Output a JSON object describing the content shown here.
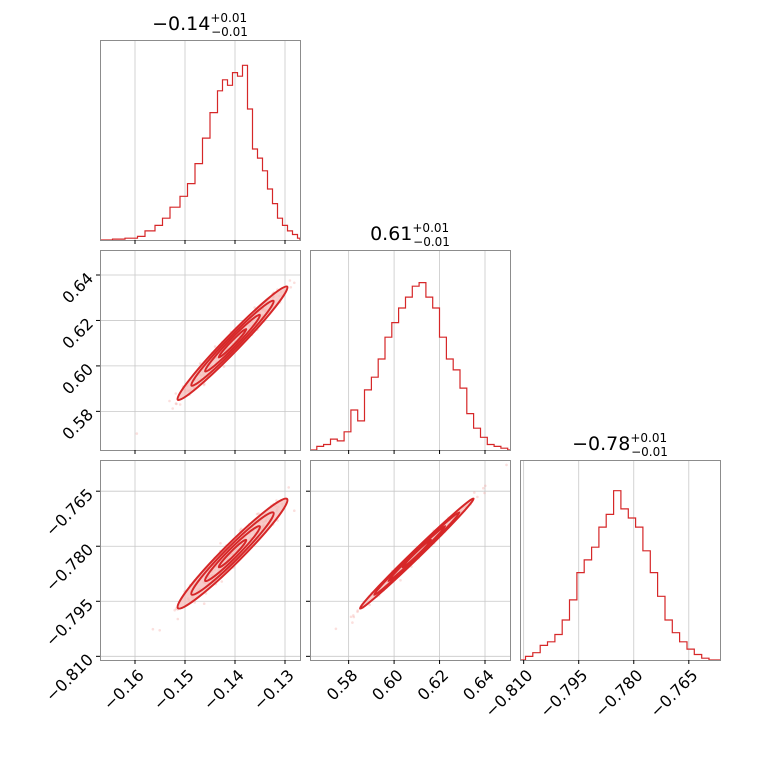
{
  "chart_data": {
    "type": "corner",
    "color": "#d62728",
    "parameters": [
      {
        "title_median": "−0.14",
        "title_plus": "+0.01",
        "title_minus": "−0.01",
        "range": [
          -0.167,
          -0.127
        ],
        "ticks": [
          -0.16,
          -0.15,
          -0.14,
          -0.13
        ],
        "tick_labels": [
          "−0.16",
          "−0.15",
          "−0.14",
          "−0.13"
        ]
      },
      {
        "title_median": "0.61",
        "title_plus": "+0.01",
        "title_minus": "−0.01",
        "range": [
          0.563,
          0.651
        ],
        "ticks": [
          0.58,
          0.6,
          0.62,
          0.64
        ],
        "tick_labels": [
          "0.58",
          "0.60",
          "0.62",
          "0.64"
        ]
      },
      {
        "title_median": "−0.78",
        "title_plus": "+0.01",
        "title_minus": "−0.01",
        "range": [
          -0.811,
          -0.7565
        ],
        "ticks": [
          -0.81,
          -0.795,
          -0.78,
          -0.765
        ],
        "tick_labels": [
          "−0.810",
          "−0.795",
          "−0.780",
          "−0.765"
        ]
      }
    ],
    "histograms": [
      {
        "bins": [
          [
            -0.167,
            0.0
          ],
          [
            -0.1645,
            0.005
          ],
          [
            -0.162,
            0.01
          ],
          [
            -0.1595,
            0.02
          ],
          [
            -0.158,
            0.05
          ],
          [
            -0.156,
            0.08
          ],
          [
            -0.1545,
            0.12
          ],
          [
            -0.153,
            0.18
          ],
          [
            -0.151,
            0.24
          ],
          [
            -0.1495,
            0.31
          ],
          [
            -0.148,
            0.42
          ],
          [
            -0.1465,
            0.56
          ],
          [
            -0.145,
            0.7
          ],
          [
            -0.1435,
            0.82
          ],
          [
            -0.1425,
            0.88
          ],
          [
            -0.1415,
            0.85
          ],
          [
            -0.1405,
            0.92
          ],
          [
            -0.1395,
            0.9
          ],
          [
            -0.1385,
            0.96
          ],
          [
            -0.1375,
            0.72
          ],
          [
            -0.1365,
            0.5
          ],
          [
            -0.1355,
            0.45
          ],
          [
            -0.1345,
            0.38
          ],
          [
            -0.1335,
            0.28
          ],
          [
            -0.1325,
            0.2
          ],
          [
            -0.1315,
            0.12
          ],
          [
            -0.1305,
            0.08
          ],
          [
            -0.1295,
            0.05
          ],
          [
            -0.1285,
            0.03
          ],
          [
            -0.1275,
            0.01
          ]
        ]
      },
      {
        "bins": [
          [
            0.563,
            0.0
          ],
          [
            0.566,
            0.02
          ],
          [
            0.569,
            0.03
          ],
          [
            0.572,
            0.06
          ],
          [
            0.575,
            0.05
          ],
          [
            0.578,
            0.1
          ],
          [
            0.581,
            0.22
          ],
          [
            0.584,
            0.16
          ],
          [
            0.587,
            0.33
          ],
          [
            0.59,
            0.4
          ],
          [
            0.593,
            0.5
          ],
          [
            0.596,
            0.62
          ],
          [
            0.599,
            0.7
          ],
          [
            0.602,
            0.78
          ],
          [
            0.605,
            0.84
          ],
          [
            0.608,
            0.9
          ],
          [
            0.611,
            0.92
          ],
          [
            0.614,
            0.84
          ],
          [
            0.617,
            0.78
          ],
          [
            0.62,
            0.62
          ],
          [
            0.623,
            0.5
          ],
          [
            0.626,
            0.44
          ],
          [
            0.629,
            0.34
          ],
          [
            0.632,
            0.2
          ],
          [
            0.635,
            0.12
          ],
          [
            0.638,
            0.07
          ],
          [
            0.641,
            0.03
          ],
          [
            0.644,
            0.02
          ],
          [
            0.647,
            0.01
          ],
          [
            0.65,
            0.0
          ]
        ]
      },
      {
        "bins": [
          [
            -0.811,
            0.0
          ],
          [
            -0.8095,
            0.02
          ],
          [
            -0.8075,
            0.04
          ],
          [
            -0.8055,
            0.08
          ],
          [
            -0.8035,
            0.1
          ],
          [
            -0.8015,
            0.14
          ],
          [
            -0.7995,
            0.22
          ],
          [
            -0.7975,
            0.33
          ],
          [
            -0.7955,
            0.48
          ],
          [
            -0.7935,
            0.55
          ],
          [
            -0.7915,
            0.62
          ],
          [
            -0.7895,
            0.73
          ],
          [
            -0.7875,
            0.8
          ],
          [
            -0.7855,
            0.93
          ],
          [
            -0.7835,
            0.83
          ],
          [
            -0.7815,
            0.78
          ],
          [
            -0.7795,
            0.73
          ],
          [
            -0.7775,
            0.6
          ],
          [
            -0.7755,
            0.48
          ],
          [
            -0.7735,
            0.35
          ],
          [
            -0.7715,
            0.22
          ],
          [
            -0.7695,
            0.15
          ],
          [
            -0.7675,
            0.1
          ],
          [
            -0.7655,
            0.06
          ],
          [
            -0.7635,
            0.03
          ],
          [
            -0.7615,
            0.01
          ],
          [
            -0.7595,
            0.0
          ]
        ]
      }
    ],
    "pairs": [
      {
        "x_param": 0,
        "y_param": 1,
        "corr": 0.98
      },
      {
        "x_param": 0,
        "y_param": 2,
        "corr": 0.97
      },
      {
        "x_param": 1,
        "y_param": 2,
        "corr": 0.995
      }
    ]
  }
}
